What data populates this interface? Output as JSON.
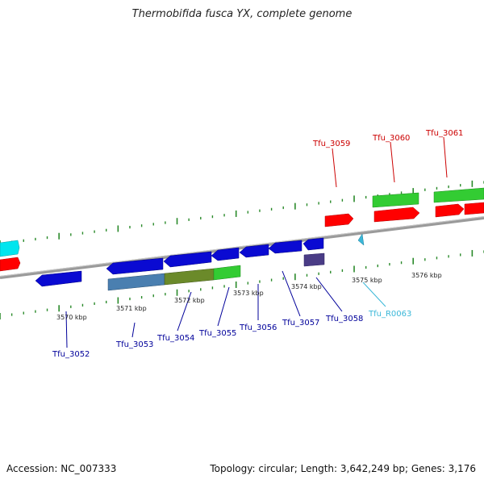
{
  "title": "Thermobifida fusca YX, complete genome",
  "footer": {
    "accession": "Accession: NC_007333",
    "summary": "Topology: circular; Length: 3,642,249 bp; Genes: 3,176"
  },
  "colors": {
    "forward_gene": "#ff0000",
    "reverse_gene": "#0a0ad2",
    "forward_label": "#cc0000",
    "reverse_label": "#00009a",
    "rna_gene": "#3ab7d8",
    "cds_green": "#33cc33",
    "cds_steel": "#4a7fb0",
    "cds_olive": "#6b8a2a",
    "cds_purple": "#4a3c86",
    "cyan_gene": "#00e5ee",
    "tick": "#2a8a2a",
    "backbone": "#888888"
  },
  "axis": {
    "unit": "kbp",
    "kbp_ticks": [
      {
        "value": 3570,
        "label": "3570 kbp"
      },
      {
        "value": 3571,
        "label": "3571 kbp"
      },
      {
        "value": 3572,
        "label": "3572 kbp"
      },
      {
        "value": 3573,
        "label": "3573 kbp"
      },
      {
        "value": 3574,
        "label": "3574 kbp"
      },
      {
        "value": 3575,
        "label": "3575 kbp"
      },
      {
        "value": 3576,
        "label": "3576 kbp"
      }
    ]
  },
  "genes": [
    {
      "name": "Tfu_3052",
      "strand": "reverse"
    },
    {
      "name": "Tfu_3053",
      "strand": "reverse"
    },
    {
      "name": "Tfu_3054",
      "strand": "reverse"
    },
    {
      "name": "Tfu_3055",
      "strand": "reverse"
    },
    {
      "name": "Tfu_3056",
      "strand": "reverse"
    },
    {
      "name": "Tfu_3057",
      "strand": "reverse"
    },
    {
      "name": "Tfu_3058",
      "strand": "reverse"
    },
    {
      "name": "Tfu_R0063",
      "strand": "reverse",
      "type": "rna"
    },
    {
      "name": "Tfu_3059",
      "strand": "forward"
    },
    {
      "name": "Tfu_3060",
      "strand": "forward"
    },
    {
      "name": "Tfu_3061",
      "strand": "forward"
    }
  ]
}
